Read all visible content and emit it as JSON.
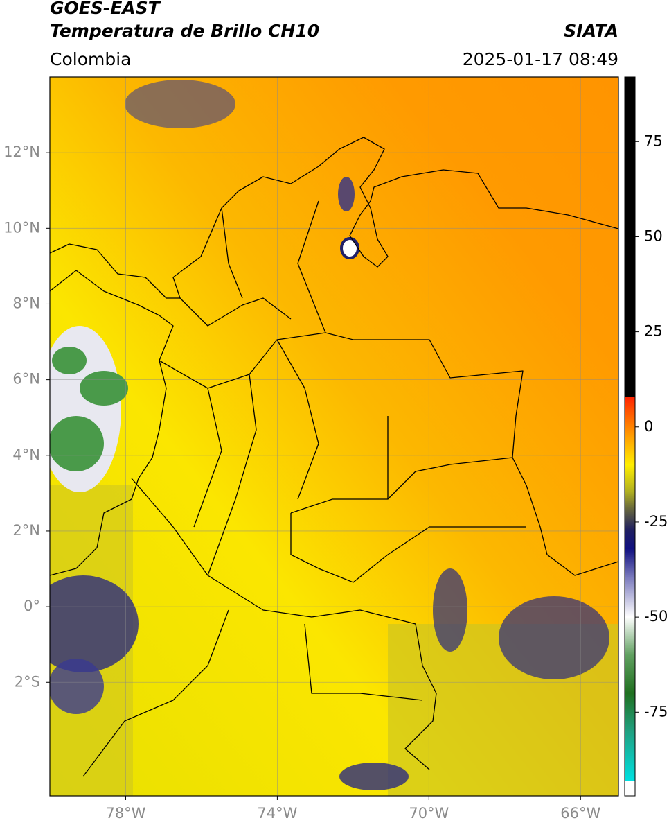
{
  "chart_data": {
    "type": "map",
    "title": "GOES-EAST",
    "subtitle": "Temperatura de Brillo CH10",
    "source": "SIATA",
    "region": "Colombia",
    "timestamp": "2025-01-17 08:49",
    "xlim": [
      -80,
      -65
    ],
    "ylim": [
      -5,
      14
    ],
    "xticks": [
      {
        "value": -78,
        "label": "78°W"
      },
      {
        "value": -74,
        "label": "74°W"
      },
      {
        "value": -70,
        "label": "70°W"
      },
      {
        "value": -66,
        "label": "66°W"
      }
    ],
    "yticks": [
      {
        "value": 12,
        "label": "12°N"
      },
      {
        "value": 10,
        "label": "10°N"
      },
      {
        "value": 8,
        "label": "8°N"
      },
      {
        "value": 6,
        "label": "6°N"
      },
      {
        "value": 4,
        "label": "4°N"
      },
      {
        "value": 2,
        "label": "2°N"
      },
      {
        "value": 0,
        "label": "0°"
      },
      {
        "value": -2,
        "label": "2°S"
      }
    ],
    "grid": true,
    "colorbar": {
      "lim": [
        -97,
        92
      ],
      "ticks": [
        -75,
        -50,
        -25,
        0,
        25,
        50,
        75
      ],
      "stops": [
        {
          "value": -97,
          "color": "#ffffff"
        },
        {
          "value": -93,
          "color": "#ffffff"
        },
        {
          "value": -93,
          "color": "#00e0e0"
        },
        {
          "value": -80,
          "color": "#20a080"
        },
        {
          "value": -70,
          "color": "#207020"
        },
        {
          "value": -60,
          "color": "#60a060"
        },
        {
          "value": -50,
          "color": "#ffffff"
        },
        {
          "value": -40,
          "color": "#8080c0"
        },
        {
          "value": -32,
          "color": "#101080"
        },
        {
          "value": -27,
          "color": "#202060"
        },
        {
          "value": -22,
          "color": "#606040"
        },
        {
          "value": -17,
          "color": "#b0b020"
        },
        {
          "value": -10,
          "color": "#ffee00"
        },
        {
          "value": -2,
          "color": "#ff9900"
        },
        {
          "value": 4,
          "color": "#ff5500"
        },
        {
          "value": 8,
          "color": "#ff2000"
        },
        {
          "value": 8,
          "color": "#000000"
        },
        {
          "value": 92,
          "color": "#000000"
        }
      ]
    }
  }
}
